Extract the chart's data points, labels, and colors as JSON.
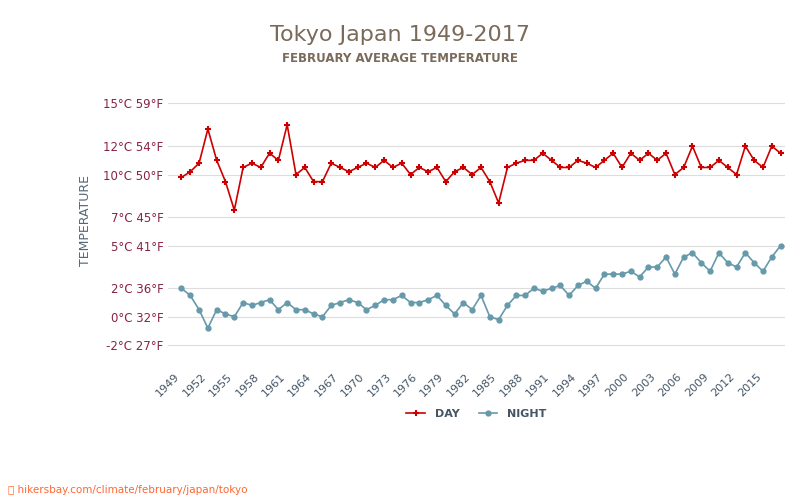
{
  "title": "Tokyo Japan 1949-2017",
  "subtitle": "FEBRUARY AVERAGE TEMPERATURE",
  "ylabel": "TEMPERATURE",
  "watermark": "hikersbay.com/climate/february/japan/tokyo",
  "years": [
    1949,
    1950,
    1951,
    1952,
    1953,
    1954,
    1955,
    1956,
    1957,
    1958,
    1959,
    1960,
    1961,
    1962,
    1963,
    1964,
    1965,
    1966,
    1967,
    1968,
    1969,
    1970,
    1971,
    1972,
    1973,
    1974,
    1975,
    1976,
    1977,
    1978,
    1979,
    1980,
    1981,
    1982,
    1983,
    1984,
    1985,
    1986,
    1987,
    1988,
    1989,
    1990,
    1991,
    1992,
    1993,
    1994,
    1995,
    1996,
    1997,
    1998,
    1999,
    2000,
    2001,
    2002,
    2003,
    2004,
    2005,
    2006,
    2007,
    2008,
    2009,
    2010,
    2011,
    2012,
    2013,
    2014,
    2015,
    2016,
    2017
  ],
  "day_temps": [
    9.8,
    10.2,
    10.8,
    13.2,
    11.0,
    9.5,
    7.5,
    10.5,
    10.8,
    10.5,
    11.5,
    11.0,
    13.5,
    10.0,
    10.5,
    9.5,
    9.5,
    10.8,
    10.5,
    10.2,
    10.5,
    10.8,
    10.5,
    11.0,
    10.5,
    10.8,
    10.0,
    10.5,
    10.2,
    10.5,
    9.5,
    10.2,
    10.5,
    10.0,
    10.5,
    9.5,
    8.0,
    10.5,
    10.8,
    11.0,
    11.0,
    11.5,
    11.0,
    10.5,
    10.5,
    11.0,
    10.8,
    10.5,
    11.0,
    11.5,
    10.5,
    11.5,
    11.0,
    11.5,
    11.0,
    11.5,
    10.0,
    10.5,
    12.0,
    10.5,
    10.5,
    11.0,
    10.5,
    10.0,
    12.0,
    11.0,
    10.5,
    12.0,
    11.5
  ],
  "night_temps": [
    2.0,
    1.5,
    0.5,
    -0.8,
    0.5,
    0.2,
    0.0,
    1.0,
    0.8,
    1.0,
    1.2,
    0.5,
    1.0,
    0.5,
    0.5,
    0.2,
    0.0,
    0.8,
    1.0,
    1.2,
    1.0,
    0.5,
    0.8,
    1.2,
    1.2,
    1.5,
    1.0,
    1.0,
    1.2,
    1.5,
    0.8,
    0.2,
    1.0,
    0.5,
    1.5,
    0.0,
    -0.2,
    0.8,
    1.5,
    1.5,
    2.0,
    1.8,
    2.0,
    2.2,
    1.5,
    2.2,
    2.5,
    2.0,
    3.0,
    3.0,
    3.0,
    3.2,
    2.8,
    3.5,
    3.5,
    4.2,
    3.0,
    4.2,
    4.5,
    3.8,
    3.2,
    4.5,
    3.8,
    3.5,
    4.5,
    3.8,
    3.2,
    4.2,
    5.0
  ],
  "day_color": "#cc0000",
  "night_color": "#6699aa",
  "title_color": "#7a6a5a",
  "subtitle_color": "#7a6a5a",
  "tick_label_color": "#882244",
  "ylabel_color": "#556677",
  "grid_color": "#dddddd",
  "watermark_color": "#ff6633",
  "background_color": "#ffffff",
  "yticks_c": [
    -2,
    0,
    2,
    5,
    7,
    10,
    12,
    15
  ],
  "yticks_f": [
    27,
    32,
    36,
    41,
    45,
    50,
    54,
    59
  ],
  "xtick_years": [
    1949,
    1952,
    1955,
    1958,
    1961,
    1964,
    1967,
    1970,
    1973,
    1976,
    1979,
    1982,
    1985,
    1988,
    1991,
    1994,
    1997,
    2000,
    2003,
    2006,
    2009,
    2012,
    2015
  ]
}
